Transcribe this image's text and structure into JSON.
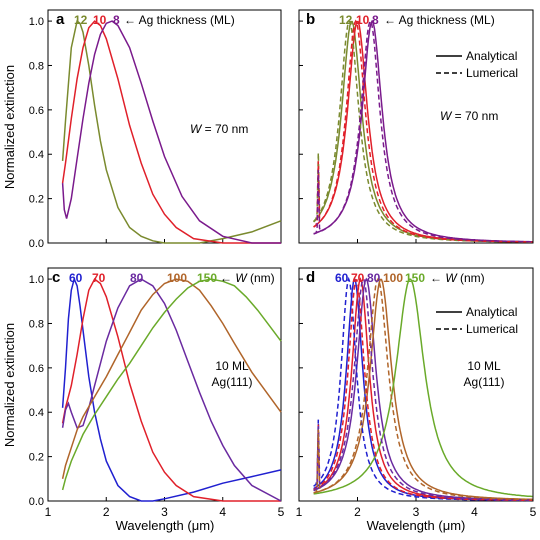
{
  "figure": {
    "ylabel_top": "Normalized extinction",
    "ylabel_bottom": "Normalized extinction",
    "xlabel_left": "Wavelength (μm)",
    "xlabel_right": "Wavelength (μm)",
    "x_ticks": [
      "1",
      "2",
      "3",
      "4",
      "5"
    ],
    "y_ticks": [
      "0.0",
      "0.2",
      "0.4",
      "0.6",
      "0.8",
      "1.0"
    ]
  },
  "colors": {
    "olive": "#7a8a2e",
    "red": "#e0202a",
    "purple": "#7a1a8c",
    "blue": "#2020d0",
    "darkpurple": "#6a2aa0",
    "brown": "#b0652a",
    "green": "#6aaa2a"
  },
  "panels": {
    "a": {
      "letter": "a",
      "legend_values": [
        "12",
        "10",
        "8"
      ],
      "legend_text": "← Ag thickness (ML)",
      "annotation_prefix": "W",
      "annotation_suffix": " = 70 nm"
    },
    "b": {
      "letter": "b",
      "legend_values": [
        "12",
        "10",
        "8"
      ],
      "legend_text": "← Ag thickness (ML)",
      "annotation_prefix": "W",
      "annotation_suffix": " = 70 nm",
      "line_legend": [
        "Analytical",
        "Lumerical"
      ]
    },
    "c": {
      "letter": "c",
      "legend_values": [
        "60",
        "70",
        "80",
        "100",
        "150"
      ],
      "legend_text_prefix": "← ",
      "legend_text_var": "W",
      "legend_text_suffix": " (nm)",
      "annotation_line1": "10 ML",
      "annotation_line2": "Ag(111)"
    },
    "d": {
      "letter": "d",
      "legend_values": [
        "60",
        "70",
        "80",
        "100",
        "150"
      ],
      "legend_text_prefix": "← ",
      "legend_text_var": "W",
      "legend_text_suffix": " (nm)",
      "annotation_line1": "10 ML",
      "annotation_line2": "Ag(111)",
      "line_legend": [
        "Analytical",
        "Lumerical"
      ]
    }
  },
  "chart_data": [
    {
      "panel": "a",
      "type": "line",
      "xlabel": "",
      "ylabel": "Normalized extinction",
      "xlim": [
        1,
        5
      ],
      "ylim": [
        0,
        1.05
      ],
      "series": [
        {
          "name": "12",
          "color": "olive",
          "dash": false,
          "x": [
            1.25,
            1.3,
            1.4,
            1.5,
            1.55,
            1.6,
            1.7,
            1.8,
            1.9,
            2.0,
            2.2,
            2.4,
            2.6,
            2.8,
            3.0,
            3.3,
            3.6,
            4.0,
            4.5,
            5.0
          ],
          "y": [
            0.37,
            0.55,
            0.88,
            1.0,
            0.99,
            0.95,
            0.8,
            0.62,
            0.46,
            0.33,
            0.16,
            0.07,
            0.03,
            0.01,
            0.0,
            0.0,
            0.0,
            0.02,
            0.05,
            0.1
          ]
        },
        {
          "name": "10",
          "color": "red",
          "dash": false,
          "x": [
            1.25,
            1.3,
            1.4,
            1.5,
            1.6,
            1.7,
            1.8,
            1.9,
            2.0,
            2.2,
            2.4,
            2.6,
            2.8,
            3.0,
            3.2,
            3.5,
            4.0,
            4.5,
            5.0
          ],
          "y": [
            0.27,
            0.36,
            0.56,
            0.74,
            0.88,
            0.97,
            1.0,
            0.98,
            0.92,
            0.74,
            0.53,
            0.36,
            0.22,
            0.13,
            0.07,
            0.02,
            0.0,
            0.0,
            0.0
          ]
        },
        {
          "name": "8",
          "color": "purple",
          "dash": false,
          "x": [
            1.25,
            1.28,
            1.32,
            1.4,
            1.5,
            1.6,
            1.7,
            1.8,
            1.9,
            2.0,
            2.1,
            2.2,
            2.4,
            2.6,
            2.8,
            3.0,
            3.3,
            3.6,
            4.0,
            4.5,
            5.0
          ],
          "y": [
            0.27,
            0.15,
            0.11,
            0.2,
            0.38,
            0.56,
            0.72,
            0.85,
            0.94,
            0.99,
            1.0,
            0.98,
            0.88,
            0.72,
            0.55,
            0.39,
            0.21,
            0.1,
            0.03,
            0.0,
            0.0
          ]
        }
      ]
    },
    {
      "panel": "b",
      "type": "line",
      "xlabel": "",
      "ylabel": "",
      "xlim": [
        1,
        5
      ],
      "ylim": [
        0,
        1.05
      ],
      "series": [
        {
          "name": "12",
          "color": "olive",
          "dash": false,
          "peak": 1.9,
          "width": 0.42
        },
        {
          "name": "10",
          "color": "red",
          "dash": false,
          "peak": 2.0,
          "width": 0.42
        },
        {
          "name": "8",
          "color": "purple",
          "dash": false,
          "peak": 2.25,
          "width": 0.42
        },
        {
          "name": "12",
          "color": "olive",
          "dash": true,
          "peak": 1.86,
          "width": 0.4
        },
        {
          "name": "10",
          "color": "red",
          "dash": true,
          "peak": 1.97,
          "width": 0.4
        },
        {
          "name": "8",
          "color": "purple",
          "dash": true,
          "peak": 2.22,
          "width": 0.4
        }
      ]
    },
    {
      "panel": "c",
      "type": "line",
      "xlabel": "Wavelength (μm)",
      "ylabel": "Normalized extinction",
      "xlim": [
        1,
        5
      ],
      "ylim": [
        0,
        1.05
      ],
      "series": [
        {
          "name": "60",
          "color": "blue",
          "dash": false,
          "x": [
            1.25,
            1.3,
            1.35,
            1.4,
            1.45,
            1.5,
            1.55,
            1.6,
            1.7,
            1.8,
            1.9,
            2.0,
            2.2,
            2.4,
            2.6,
            2.8,
            3.0,
            3.5,
            4.0,
            4.5,
            5.0
          ],
          "y": [
            0.42,
            0.6,
            0.82,
            0.95,
            1.0,
            0.97,
            0.88,
            0.77,
            0.56,
            0.4,
            0.28,
            0.18,
            0.07,
            0.02,
            0.0,
            0.0,
            0.01,
            0.04,
            0.08,
            0.11,
            0.14
          ]
        },
        {
          "name": "70",
          "color": "red",
          "dash": false,
          "x": [
            1.25,
            1.3,
            1.4,
            1.5,
            1.6,
            1.7,
            1.8,
            1.9,
            2.0,
            2.2,
            2.4,
            2.6,
            2.8,
            3.0,
            3.2,
            3.5,
            4.0,
            4.5,
            5.0
          ],
          "y": [
            0.35,
            0.42,
            0.52,
            0.66,
            0.82,
            0.95,
            1.0,
            0.98,
            0.92,
            0.74,
            0.53,
            0.36,
            0.22,
            0.13,
            0.07,
            0.02,
            0.0,
            0.0,
            0.0
          ]
        },
        {
          "name": "80",
          "color": "darkpurple",
          "dash": false,
          "x": [
            1.25,
            1.3,
            1.35,
            1.4,
            1.5,
            1.6,
            1.7,
            1.8,
            2.0,
            2.2,
            2.4,
            2.6,
            2.8,
            3.0,
            3.2,
            3.4,
            3.6,
            3.8,
            4.0,
            4.2,
            4.5,
            5.0
          ],
          "y": [
            0.33,
            0.41,
            0.44,
            0.4,
            0.33,
            0.34,
            0.42,
            0.52,
            0.72,
            0.87,
            0.97,
            1.0,
            0.97,
            0.89,
            0.77,
            0.63,
            0.49,
            0.36,
            0.25,
            0.16,
            0.07,
            0.0
          ]
        },
        {
          "name": "100",
          "color": "brown",
          "dash": false,
          "x": [
            1.25,
            1.3,
            1.4,
            1.5,
            1.6,
            1.8,
            2.0,
            2.2,
            2.4,
            2.6,
            2.8,
            3.0,
            3.2,
            3.4,
            3.6,
            3.8,
            4.0,
            4.2,
            4.5,
            5.0
          ],
          "y": [
            0.1,
            0.16,
            0.24,
            0.32,
            0.38,
            0.47,
            0.56,
            0.66,
            0.76,
            0.86,
            0.93,
            0.98,
            1.0,
            0.99,
            0.95,
            0.88,
            0.8,
            0.71,
            0.58,
            0.4
          ]
        },
        {
          "name": "150",
          "color": "green",
          "dash": false,
          "x": [
            1.25,
            1.3,
            1.4,
            1.6,
            1.8,
            2.0,
            2.2,
            2.4,
            2.6,
            2.8,
            3.0,
            3.2,
            3.4,
            3.6,
            3.8,
            4.0,
            4.2,
            4.4,
            4.6,
            4.8,
            5.0
          ],
          "y": [
            0.05,
            0.1,
            0.18,
            0.3,
            0.39,
            0.47,
            0.55,
            0.62,
            0.7,
            0.78,
            0.85,
            0.91,
            0.96,
            0.99,
            1.0,
            0.99,
            0.97,
            0.92,
            0.86,
            0.79,
            0.72
          ]
        }
      ]
    },
    {
      "panel": "d",
      "type": "line",
      "xlabel": "Wavelength (μm)",
      "ylabel": "",
      "xlim": [
        1,
        5
      ],
      "ylim": [
        0,
        1.05
      ],
      "series": [
        {
          "name": "60",
          "color": "blue",
          "dash": false,
          "peak": 1.95,
          "width": 0.34
        },
        {
          "name": "70",
          "color": "red",
          "dash": false,
          "peak": 2.05,
          "width": 0.36
        },
        {
          "name": "80",
          "color": "darkpurple",
          "dash": false,
          "peak": 2.15,
          "width": 0.4
        },
        {
          "name": "100",
          "color": "brown",
          "dash": false,
          "peak": 2.4,
          "width": 0.45
        },
        {
          "name": "150",
          "color": "green",
          "dash": false,
          "peak": 2.9,
          "width": 0.6
        },
        {
          "name": "60",
          "color": "blue",
          "dash": true,
          "peak": 1.85,
          "width": 0.32
        },
        {
          "name": "70",
          "color": "red",
          "dash": true,
          "peak": 1.98,
          "width": 0.34
        },
        {
          "name": "80",
          "color": "darkpurple",
          "dash": true,
          "peak": 2.1,
          "width": 0.38
        },
        {
          "name": "100",
          "color": "brown",
          "dash": true,
          "peak": 2.35,
          "width": 0.43
        }
      ]
    }
  ]
}
